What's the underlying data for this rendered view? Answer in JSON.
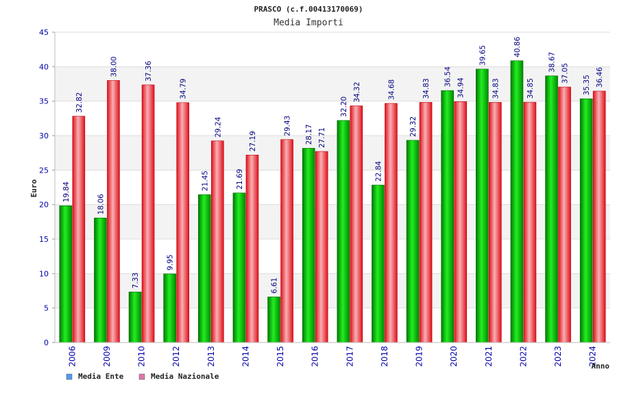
{
  "chart_data": {
    "type": "bar",
    "title": "PRASCO (c.f.00413170069)",
    "subtitle": "Media Importi",
    "xlabel": "Anno",
    "ylabel": "Euro",
    "ylim": [
      0,
      45
    ],
    "yticks": [
      0,
      5,
      10,
      15,
      20,
      25,
      30,
      35,
      40,
      45
    ],
    "grid": true,
    "legend_position": "bottom-left",
    "categories": [
      "2006",
      "2009",
      "2010",
      "2012",
      "2013",
      "2014",
      "2015",
      "2016",
      "2017",
      "2018",
      "2019",
      "2020",
      "2021",
      "2022",
      "2023",
      "2024"
    ],
    "series": [
      {
        "name": "Media Ente",
        "color": "#00aa00",
        "values": [
          19.84,
          18.06,
          7.33,
          9.95,
          21.45,
          21.69,
          6.61,
          28.17,
          32.2,
          22.84,
          29.32,
          36.54,
          39.65,
          40.86,
          38.67,
          35.35
        ],
        "labels": [
          "19.84",
          "18.06",
          "7.33",
          "9.95",
          "21.45",
          "21.69",
          "6.61",
          "28.17",
          "32.20",
          "22.84",
          "29.32",
          "36.54",
          "39.65",
          "40.86",
          "38.67",
          "35.35"
        ]
      },
      {
        "name": "Media Nazionale",
        "color": "#e8202a",
        "values": [
          32.82,
          38.0,
          37.36,
          34.79,
          29.24,
          27.19,
          29.43,
          27.71,
          34.32,
          34.68,
          34.83,
          34.94,
          34.83,
          34.85,
          37.05,
          36.46
        ],
        "labels": [
          "32.82",
          "38.00",
          "37.36",
          "34.79",
          "29.24",
          "27.19",
          "29.43",
          "27.71",
          "34.32",
          "34.68",
          "34.83",
          "34.94",
          "34.83",
          "34.85",
          "37.05",
          "36.46"
        ]
      }
    ],
    "legend_colors": [
      "#5599ee",
      "#dd77aa"
    ]
  }
}
